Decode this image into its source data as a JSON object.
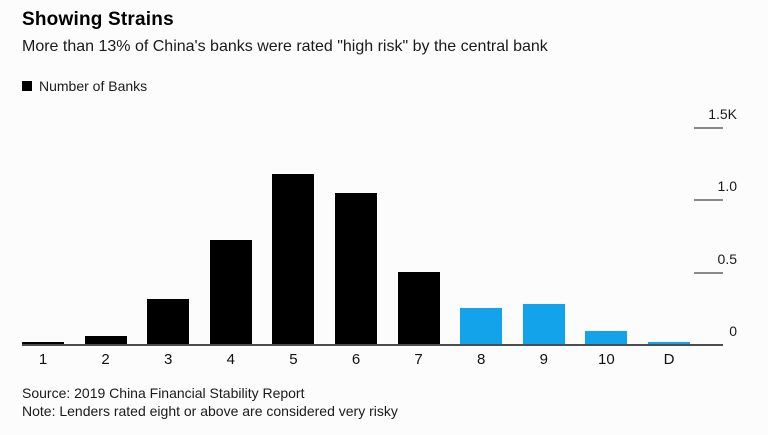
{
  "header": {
    "title": "Showing Strains",
    "subtitle": "More than 13% of China's banks were rated \"high risk\" by the central bank"
  },
  "legend": {
    "label": "Number of Banks",
    "swatch_color": "#000000"
  },
  "chart_data": {
    "type": "bar",
    "title": "Showing Strains",
    "subtitle": "More than 13% of China's banks were rated \"high risk\" by the central bank",
    "legend_entries": [
      "Number of Banks"
    ],
    "categories": [
      "1",
      "2",
      "3",
      "4",
      "5",
      "6",
      "7",
      "8",
      "9",
      "10",
      "D"
    ],
    "values": [
      10,
      55,
      310,
      720,
      1170,
      1040,
      500,
      250,
      275,
      90,
      10
    ],
    "unit": "banks",
    "xlabel": "",
    "ylabel": "",
    "grid": false,
    "y_axis": {
      "side": "right",
      "max": 1500,
      "ticks": [
        {
          "label": "1.5K",
          "value": 1500
        },
        {
          "label": "1.0",
          "value": 1000
        },
        {
          "label": "0.5",
          "value": 500
        },
        {
          "label": "0",
          "value": 0
        }
      ]
    },
    "bar_colors": [
      "#000000",
      "#000000",
      "#000000",
      "#000000",
      "#000000",
      "#000000",
      "#000000",
      "#12a3ea",
      "#12a3ea",
      "#12a3ea",
      "#12a3ea"
    ],
    "palette": {
      "normal": "#000000",
      "high_risk": "#12a3ea"
    },
    "high_risk_categories": [
      "8",
      "9",
      "10",
      "D"
    ]
  },
  "footer": {
    "source": "Source: 2019 China Financial Stability Report",
    "note": "Note: Lenders rated eight or above are considered very risky"
  }
}
